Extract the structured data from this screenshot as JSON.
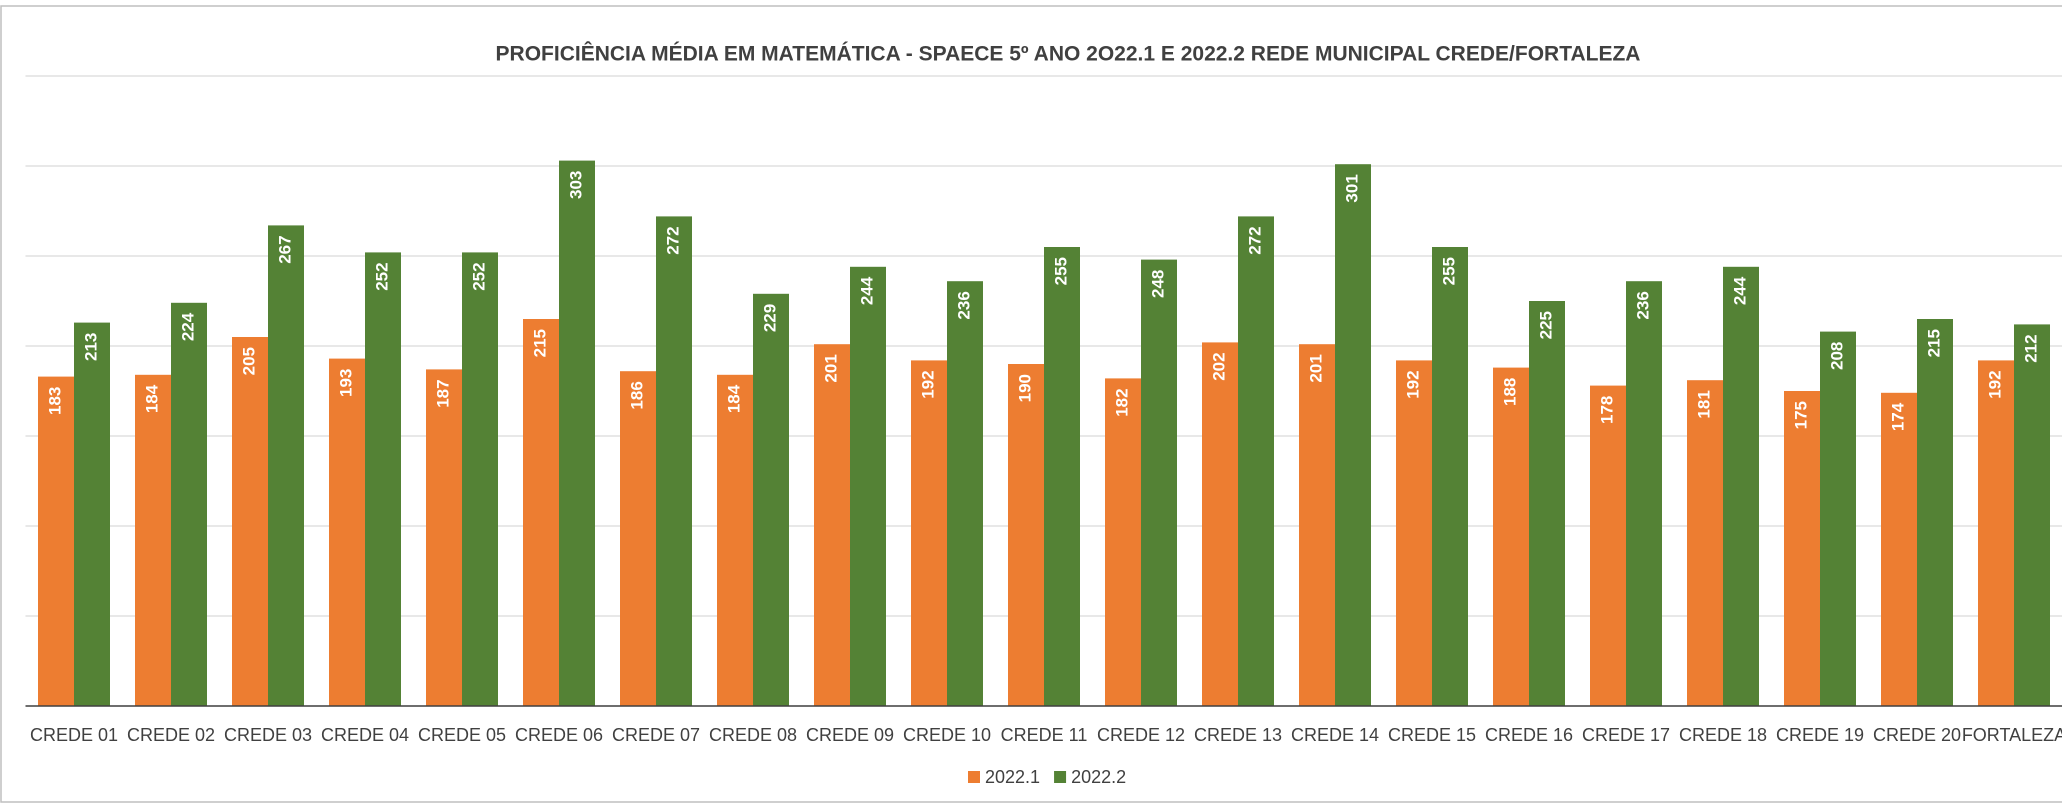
{
  "chart_data": {
    "type": "bar",
    "title": "PROFICIÊNCIA MÉDIA EM MATEMÁTICA - SPAECE 5º ANO 2O22.1 E 2022.2 REDE MUNICIPAL CREDE/FORTALEZA",
    "categories": [
      "CREDE 01",
      "CREDE 02",
      "CREDE 03",
      "CREDE 04",
      "CREDE 05",
      "CREDE 06",
      "CREDE 07",
      "CREDE 08",
      "CREDE 09",
      "CREDE 10",
      "CREDE 11",
      "CREDE 12",
      "CREDE 13",
      "CREDE 14",
      "CREDE 15",
      "CREDE 16",
      "CREDE 17",
      "CREDE 18",
      "CREDE 19",
      "CREDE 20",
      "FORTALEZA"
    ],
    "series": [
      {
        "name": "2022.1",
        "color": "#ed7d31",
        "values": [
          183,
          184,
          205,
          193,
          187,
          215,
          186,
          184,
          201,
          192,
          190,
          182,
          202,
          201,
          192,
          188,
          178,
          181,
          175,
          174,
          192
        ]
      },
      {
        "name": "2022.2",
        "color": "#548235",
        "values": [
          213,
          224,
          267,
          252,
          252,
          303,
          272,
          229,
          244,
          236,
          255,
          248,
          272,
          301,
          255,
          225,
          236,
          244,
          208,
          215,
          212
        ]
      }
    ],
    "ylim": [
      0,
      350
    ],
    "yticks": [
      0,
      50,
      100,
      150,
      200,
      250,
      300,
      350
    ],
    "grid": true,
    "legend": "bottom"
  }
}
